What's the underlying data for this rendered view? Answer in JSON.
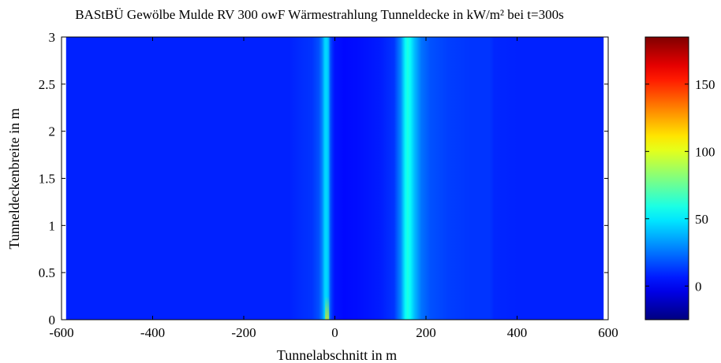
{
  "chart_data": {
    "type": "heatmap",
    "title": "BAStBÜ Gewölbe Mulde RV 300 owF Wärmestrahlung Tunneldecke in kW/m² bei t=300s",
    "xlabel": "Tunnelabschnitt in m",
    "ylabel": "Tunneldeckenbreite in m",
    "xlim": [
      -600,
      600
    ],
    "ylim": [
      0,
      3
    ],
    "data_xlim": [
      -590,
      590
    ],
    "data_ylim": [
      0,
      3
    ],
    "x_ticks": [
      -600,
      -400,
      -200,
      0,
      200,
      400,
      600
    ],
    "y_ticks": [
      0,
      0.5,
      1,
      1.5,
      2,
      2.5,
      3
    ],
    "x_tick_labels": [
      "-600",
      "-400",
      "-200",
      "0",
      "200",
      "400",
      "600"
    ],
    "y_tick_labels": [
      "0",
      "0.5",
      "1",
      "1.5",
      "2",
      "2.5",
      "3"
    ],
    "colorbar": {
      "colormap": "jet",
      "range": [
        -25,
        185
      ],
      "ticks": [
        0,
        50,
        100,
        150
      ],
      "tick_labels": [
        "0",
        "50",
        "100",
        "150"
      ]
    },
    "background_value": 8,
    "profile": {
      "x": [
        -590,
        -100,
        -80,
        -50,
        -35,
        -28,
        -22,
        -18,
        -14,
        -10,
        -5,
        0,
        20,
        50,
        100,
        130,
        145,
        155,
        160,
        165,
        175,
        190,
        210,
        250,
        300,
        340,
        350,
        400,
        590
      ],
      "values": [
        8,
        8,
        10,
        12,
        18,
        28,
        45,
        46,
        40,
        18,
        10,
        5,
        3,
        4,
        7,
        12,
        30,
        55,
        60,
        55,
        40,
        25,
        18,
        14,
        12,
        12,
        9,
        8,
        8
      ]
    },
    "hotspot": {
      "x": -17,
      "y_from": 0,
      "y_to": 0.25,
      "value": 85
    }
  }
}
